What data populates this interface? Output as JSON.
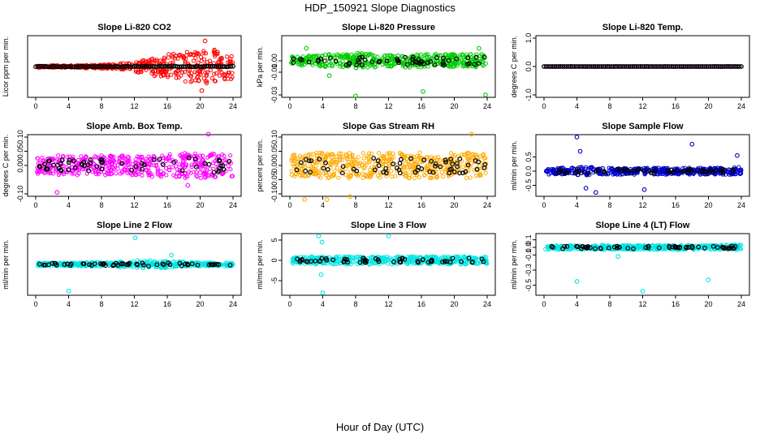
{
  "figure": {
    "title": "HDP_150921  Slope Diagnostics",
    "xlabel": "Hour of Day (UTC)"
  },
  "chart_data": [
    {
      "type": "scatter",
      "title": "Slope Li-820 CO2",
      "ylabel": "Licor ppm per min.",
      "xlim": [
        0,
        24
      ],
      "ylim": [
        -1.0,
        1.0
      ],
      "xticks": [
        0,
        4,
        8,
        12,
        16,
        20,
        24
      ],
      "yticks": [],
      "color": "#ff0000",
      "spread": [
        0.04,
        0.04,
        0.04,
        0.06,
        0.08,
        0.12,
        0.22,
        0.35,
        0.45,
        0.55,
        0.6,
        0.45
      ],
      "outliers": [
        [
          20.6,
          0.9
        ],
        [
          20.2,
          -0.85
        ],
        [
          19.8,
          -0.5
        ],
        [
          22.1,
          0.5
        ],
        [
          15.2,
          0.2
        ]
      ]
    },
    {
      "type": "scatter",
      "title": "Slope Li-820 Pressure",
      "ylabel": "kPa per min.",
      "xlim": [
        0,
        24
      ],
      "ylim": [
        -0.03,
        0.02
      ],
      "xticks": [
        0,
        4,
        8,
        12,
        16,
        20,
        24
      ],
      "yticks": [
        -0.03,
        -0.01,
        0.0
      ],
      "ytick_labels": [
        "-0.03",
        "-0.01",
        "0.00"
      ],
      "color": "#00cc00",
      "spread": [
        0.004,
        0.005,
        0.006,
        0.006,
        0.007,
        0.006,
        0.005,
        0.006,
        0.006,
        0.006,
        0.006,
        0.006
      ],
      "outliers": [
        [
          8.0,
          -0.031
        ],
        [
          16.2,
          -0.027
        ],
        [
          23.8,
          -0.03
        ],
        [
          2.0,
          0.011
        ],
        [
          23.0,
          0.011
        ],
        [
          4.8,
          -0.013
        ]
      ]
    },
    {
      "type": "scatter",
      "title": "Slope Li-820 Temp.",
      "ylabel": "degrees C per min.",
      "xlim": [
        0,
        24
      ],
      "ylim": [
        -1.0,
        1.0
      ],
      "xticks": [
        0,
        4,
        8,
        12,
        16,
        20,
        24
      ],
      "yticks": [
        -1.0,
        0.0,
        1.0
      ],
      "ytick_labels": [
        "-1.0",
        "0.0",
        "1.0"
      ],
      "color": "#cc00cc",
      "spread": [
        0.005,
        0.005,
        0.005,
        0.005,
        0.005,
        0.005,
        0.005,
        0.005,
        0.005,
        0.005,
        0.005,
        0.005
      ],
      "outliers": []
    },
    {
      "type": "scatter",
      "title": "Slope Amb. Box Temp.",
      "ylabel": "degrees C per min.",
      "xlim": [
        0,
        24
      ],
      "ylim": [
        -0.1,
        0.1
      ],
      "xticks": [
        0,
        4,
        8,
        12,
        16,
        20,
        24
      ],
      "yticks": [
        -0.1,
        0.0,
        0.05,
        0.1
      ],
      "ytick_labels": [
        "-0.10",
        "0.00",
        "0.05",
        "0.10"
      ],
      "color": "#ff00ff",
      "spread": [
        0.03,
        0.035,
        0.035,
        0.035,
        0.035,
        0.035,
        0.035,
        0.04,
        0.04,
        0.045,
        0.045,
        0.04
      ],
      "outliers": [
        [
          2.6,
          -0.095
        ],
        [
          21.0,
          0.11
        ],
        [
          18.5,
          -0.07
        ]
      ]
    },
    {
      "type": "scatter",
      "title": "Slope Gas Stream RH",
      "ylabel": "percent per min.",
      "xlim": [
        0,
        24
      ],
      "ylim": [
        -0.1,
        0.1
      ],
      "xticks": [
        0,
        4,
        8,
        12,
        16,
        20,
        24
      ],
      "yticks": [
        -0.1,
        -0.05,
        0.0,
        0.05,
        0.1
      ],
      "ytick_labels": [
        "-0.10",
        "-0.05",
        "0.00",
        "0.05",
        "0.10"
      ],
      "color": "#ffaa00",
      "spread": [
        0.04,
        0.045,
        0.045,
        0.045,
        0.045,
        0.045,
        0.045,
        0.045,
        0.045,
        0.045,
        0.045,
        0.04
      ],
      "outliers": [
        [
          1.8,
          -0.12
        ],
        [
          4.5,
          -0.12
        ],
        [
          7.3,
          -0.11
        ],
        [
          22.1,
          0.11
        ]
      ]
    },
    {
      "type": "scatter",
      "title": "Slope Sample Flow",
      "ylabel": "ml/min per min.",
      "xlim": [
        0,
        24
      ],
      "ylim": [
        -0.8,
        1.2
      ],
      "xticks": [
        0,
        4,
        8,
        12,
        16,
        20,
        24
      ],
      "yticks": [
        -0.5,
        0.0,
        0.5
      ],
      "ytick_labels": [
        "-0.5",
        "0.0",
        "0.5"
      ],
      "color": "#0000cc",
      "spread": [
        0.12,
        0.12,
        0.15,
        0.12,
        0.12,
        0.12,
        0.12,
        0.12,
        0.12,
        0.12,
        0.12,
        0.14
      ],
      "outliers": [
        [
          4.0,
          1.2
        ],
        [
          5.1,
          -0.6
        ],
        [
          6.3,
          -0.75
        ],
        [
          12.2,
          -0.65
        ],
        [
          4.4,
          0.7
        ],
        [
          18.0,
          0.95
        ],
        [
          23.5,
          0.55
        ]
      ]
    },
    {
      "type": "scatter",
      "title": "Slope Line 2 Flow",
      "ylabel": "ml/min per min.",
      "xlim": [
        0,
        24
      ],
      "ylim": [
        -8,
        8
      ],
      "xticks": [
        0,
        4,
        8,
        12,
        16,
        20,
        24
      ],
      "yticks": [],
      "color": "#00e5e5",
      "spread": [
        0.5,
        0.5,
        0.5,
        0.6,
        0.6,
        0.8,
        1.2,
        1.0,
        0.8,
        0.6,
        0.5,
        0.5
      ],
      "outliers": [
        [
          12.1,
          7.5
        ],
        [
          4.0,
          -7.5
        ],
        [
          16.5,
          2.6
        ]
      ]
    },
    {
      "type": "scatter",
      "title": "Slope Line 3 Flow",
      "ylabel": "ml/min per min.",
      "xlim": [
        0,
        24
      ],
      "ylim": [
        -8,
        6
      ],
      "xticks": [
        0,
        4,
        8,
        12,
        16,
        20,
        24
      ],
      "yticks": [
        -5,
        0,
        5
      ],
      "ytick_labels": [
        "-5",
        "0",
        "5"
      ],
      "color": "#00e5e5",
      "spread": [
        0.9,
        1.0,
        1.0,
        1.0,
        1.0,
        1.0,
        1.0,
        1.0,
        1.0,
        1.0,
        1.0,
        0.9
      ],
      "outliers": [
        [
          3.5,
          6.0
        ],
        [
          4.0,
          -8.0
        ],
        [
          12.0,
          6.0
        ],
        [
          3.8,
          -3.5
        ],
        [
          3.9,
          4.5
        ]
      ]
    },
    {
      "type": "scatter",
      "title": "Slope Line 4 (LT) Flow",
      "ylabel": "ml/min per min.",
      "xlim": [
        0,
        24
      ],
      "ylim": [
        -0.6,
        0.15
      ],
      "xticks": [
        0,
        4,
        8,
        12,
        16,
        20,
        24
      ],
      "yticks": [
        -0.5,
        -0.3,
        -0.1,
        0.0,
        0.1
      ],
      "ytick_labels": [
        "-0.5",
        "-0.3",
        "-0.1",
        "0.0",
        "0.1"
      ],
      "color": "#00e5e5",
      "spread": [
        0.03,
        0.03,
        0.03,
        0.03,
        0.03,
        0.03,
        0.03,
        0.03,
        0.03,
        0.03,
        0.03,
        0.035
      ],
      "outliers": [
        [
          4.0,
          -0.45
        ],
        [
          12.0,
          -0.58
        ],
        [
          20.0,
          -0.43
        ],
        [
          9.0,
          -0.12
        ]
      ]
    }
  ]
}
